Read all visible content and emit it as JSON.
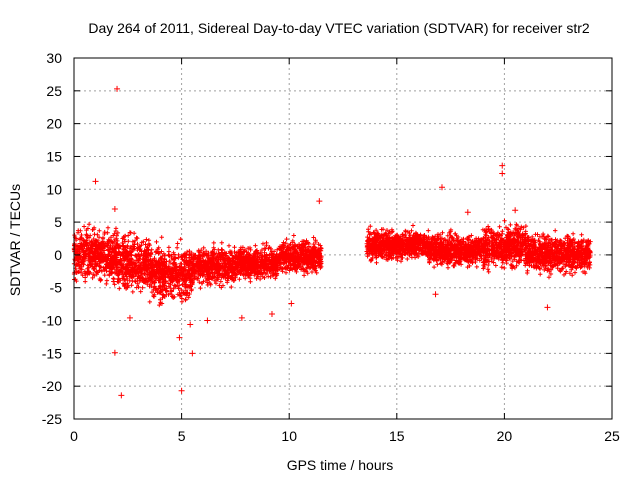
{
  "chart_data": {
    "type": "scatter",
    "title": "Day 264 of 2011, Sidereal Day-to-day VTEC variation (SDTVAR) for receiver str2",
    "xlabel": "GPS time / hours",
    "ylabel": "SDTVAR / TECUs",
    "xlim": [
      0,
      25
    ],
    "ylim": [
      -25,
      30
    ],
    "xticks": [
      0,
      5,
      10,
      15,
      20,
      25
    ],
    "yticks": [
      -25,
      -20,
      -15,
      -10,
      -5,
      0,
      5,
      10,
      15,
      20,
      25,
      30
    ],
    "grid": true,
    "marker": "+",
    "color": "#ff0000",
    "data_gap_hours": [
      11.6,
      13.6
    ],
    "dense_bands": [
      {
        "x": [
          0.0,
          2.0
        ],
        "low": -4.5,
        "high": 4.5
      },
      {
        "x": [
          2.0,
          3.5
        ],
        "low": -6.0,
        "high": 3.5
      },
      {
        "x": [
          3.5,
          5.5
        ],
        "low": -7.5,
        "high": 2.0
      },
      {
        "x": [
          5.5,
          7.5
        ],
        "low": -5.0,
        "high": 1.5
      },
      {
        "x": [
          7.5,
          9.5
        ],
        "low": -4.0,
        "high": 1.5
      },
      {
        "x": [
          9.5,
          11.5
        ],
        "low": -3.0,
        "high": 2.5
      },
      {
        "x": [
          13.6,
          16.5
        ],
        "low": -1.0,
        "high": 4.0
      },
      {
        "x": [
          16.5,
          19.0
        ],
        "low": -2.0,
        "high": 3.5
      },
      {
        "x": [
          19.0,
          21.0
        ],
        "low": -2.5,
        "high": 5.0
      },
      {
        "x": [
          21.0,
          24.0
        ],
        "low": -3.0,
        "high": 3.5
      }
    ],
    "outliers": [
      {
        "x": 2.0,
        "y": 25.3
      },
      {
        "x": 1.0,
        "y": 11.2
      },
      {
        "x": 1.9,
        "y": -14.9
      },
      {
        "x": 2.2,
        "y": -21.4
      },
      {
        "x": 5.0,
        "y": -20.7
      },
      {
        "x": 5.5,
        "y": -15.0
      },
      {
        "x": 17.1,
        "y": 10.3
      },
      {
        "x": 19.9,
        "y": 13.6
      },
      {
        "x": 19.9,
        "y": 12.4
      },
      {
        "x": 11.4,
        "y": 8.2
      },
      {
        "x": 1.9,
        "y": 7.0
      },
      {
        "x": 4.9,
        "y": -12.6
      },
      {
        "x": 5.4,
        "y": -10.6
      },
      {
        "x": 2.6,
        "y": -9.6
      },
      {
        "x": 7.8,
        "y": -9.6
      },
      {
        "x": 9.2,
        "y": -9.0
      },
      {
        "x": 6.2,
        "y": -10.0
      },
      {
        "x": 20.5,
        "y": 6.8
      },
      {
        "x": 22.0,
        "y": -8.0
      },
      {
        "x": 16.8,
        "y": -6.0
      },
      {
        "x": 18.3,
        "y": 6.5
      },
      {
        "x": 10.1,
        "y": -7.4
      }
    ]
  }
}
